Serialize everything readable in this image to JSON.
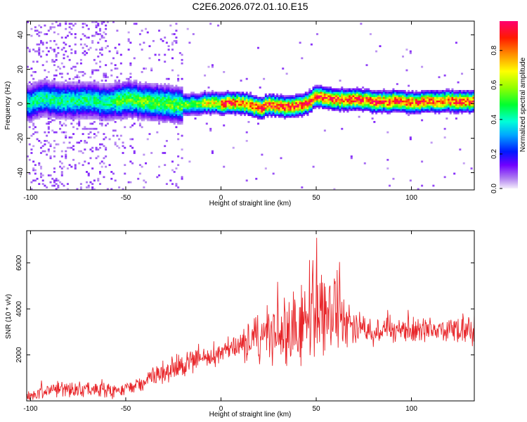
{
  "title": "C2E6.2026.072.01.10.E15",
  "chart_data": [
    {
      "type": "heatmap",
      "xlabel": "Height of straight line (km)",
      "ylabel": "Frequency (Hz)",
      "xlim": [
        -102,
        133
      ],
      "ylim": [
        -50,
        48
      ],
      "xticks": [
        -100,
        -50,
        0,
        50,
        100
      ],
      "yticks": [
        -40,
        -20,
        0,
        20,
        40
      ],
      "colorbar": {
        "label": "Normalized spectral amplitude",
        "ticks": [
          0.0,
          0.2,
          0.4,
          0.6,
          0.8
        ],
        "range": [
          0,
          0.97
        ]
      },
      "ridge_center_freq": {
        "x": [
          -100,
          -95,
          -90,
          -80,
          -70,
          -60,
          -50,
          -40,
          -30,
          -20,
          -10,
          0,
          10,
          15,
          20,
          25,
          30,
          40,
          45,
          50,
          55,
          60,
          70,
          80,
          90,
          100,
          110,
          120,
          133
        ],
        "y": [
          0,
          3,
          2,
          1,
          2,
          0,
          2,
          1,
          0,
          -1,
          0,
          0,
          0,
          -1,
          -3,
          -1,
          -2,
          -2,
          0,
          4,
          3,
          2,
          2,
          1,
          1,
          0,
          1,
          1,
          1
        ]
      },
      "grid": false
    },
    {
      "type": "line",
      "xlabel": "Height of straight line (km)",
      "ylabel": "SNR (10 * v/v)",
      "xlim": [
        -102,
        133
      ],
      "ylim": [
        0,
        7400
      ],
      "xticks": [
        -100,
        -50,
        0,
        50,
        100
      ],
      "yticks": [
        2000,
        4000,
        6000
      ],
      "color": "#e8262a",
      "series": [
        {
          "x": [
            -100,
            -90,
            -80,
            -70,
            -60,
            -50,
            -40,
            -30,
            -20,
            -15,
            -10,
            -5,
            0,
            5,
            10,
            15,
            20,
            25,
            30,
            35,
            40,
            45,
            50,
            55,
            60,
            65,
            70,
            80,
            90,
            100,
            110,
            120,
            130,
            133
          ],
          "values": [
            200,
            500,
            500,
            500,
            400,
            500,
            900,
            1200,
            1500,
            1800,
            1800,
            1900,
            2000,
            2200,
            2400,
            2600,
            2700,
            2900,
            3000,
            3100,
            3200,
            3300,
            3600,
            3700,
            3600,
            3500,
            3300,
            3100,
            3100,
            3000,
            3100,
            3100,
            3000,
            3000
          ],
          "spread": [
            300,
            400,
            400,
            400,
            400,
            400,
            500,
            600,
            700,
            800,
            500,
            500,
            500,
            600,
            800,
            1100,
            1300,
            1500,
            1700,
            1800,
            1800,
            1900,
            2200,
            2200,
            2100,
            1300,
            1000,
            800,
            700,
            700,
            700,
            700,
            900,
            900
          ]
        }
      ],
      "grid": false
    }
  ]
}
